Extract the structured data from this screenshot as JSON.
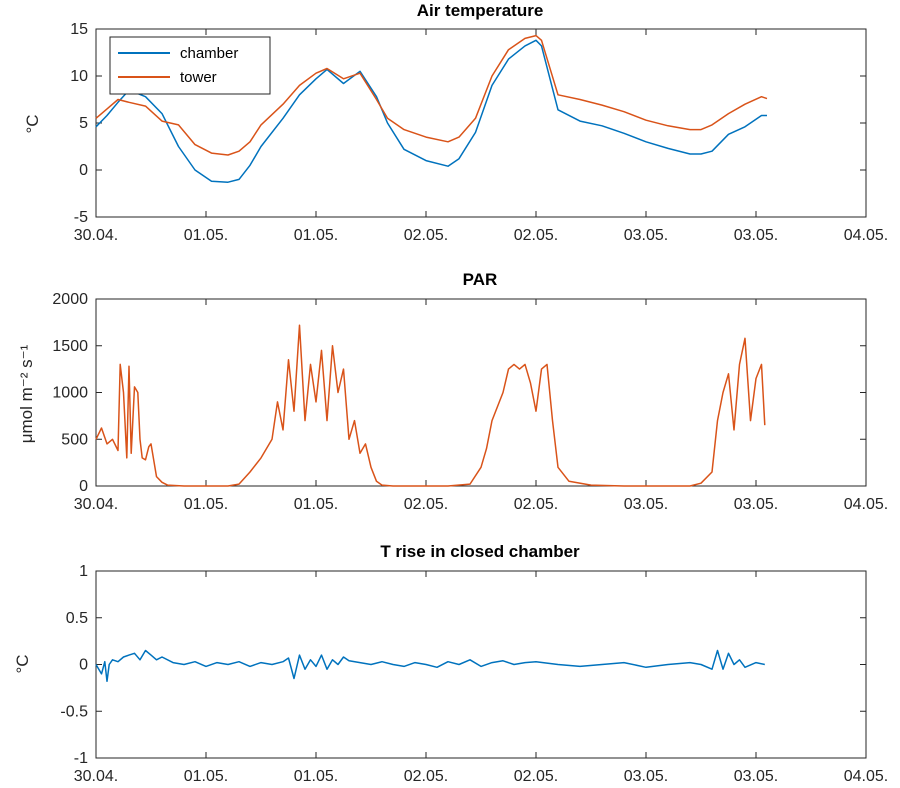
{
  "chart_data": [
    {
      "type": "line",
      "title": "Air temperature",
      "ylabel": "°C",
      "ylim": [
        -5,
        15
      ],
      "yticks": [
        -5,
        0,
        5,
        10,
        15
      ],
      "xlim": [
        0,
        7
      ],
      "xtick_labels": [
        "30.04.",
        "01.05.",
        "01.05.",
        "02.05.",
        "02.05.",
        "03.05.",
        "03.05.",
        "04.05."
      ],
      "legend": {
        "position": "top-left"
      },
      "series": [
        {
          "name": "chamber",
          "color": "#0072BD",
          "x": [
            0,
            0.1,
            0.2,
            0.3,
            0.45,
            0.6,
            0.75,
            0.9,
            1.05,
            1.2,
            1.3,
            1.4,
            1.5,
            1.7,
            1.85,
            2.0,
            2.1,
            2.25,
            2.4,
            2.55,
            2.65,
            2.8,
            3.0,
            3.2,
            3.3,
            3.45,
            3.6,
            3.75,
            3.9,
            4.0,
            4.05,
            4.2,
            4.4,
            4.6,
            4.8,
            5.0,
            5.2,
            5.4,
            5.5,
            5.6,
            5.75,
            5.9,
            6.05,
            6.1
          ],
          "y": [
            4.6,
            5.8,
            7.2,
            8.5,
            7.8,
            6.0,
            2.5,
            0.0,
            -1.2,
            -1.3,
            -1.0,
            0.5,
            2.5,
            5.5,
            8.0,
            9.7,
            10.7,
            9.2,
            10.5,
            7.8,
            5.0,
            2.2,
            1.0,
            0.4,
            1.2,
            4.0,
            9.0,
            11.8,
            13.2,
            13.8,
            13.2,
            6.4,
            5.2,
            4.7,
            3.9,
            3.0,
            2.3,
            1.7,
            1.7,
            2.0,
            3.8,
            4.6,
            5.8,
            5.8
          ]
        },
        {
          "name": "tower",
          "color": "#D95319",
          "x": [
            0,
            0.1,
            0.2,
            0.3,
            0.45,
            0.6,
            0.75,
            0.9,
            1.05,
            1.2,
            1.3,
            1.4,
            1.5,
            1.7,
            1.85,
            2.0,
            2.1,
            2.25,
            2.4,
            2.55,
            2.65,
            2.8,
            3.0,
            3.2,
            3.3,
            3.45,
            3.6,
            3.75,
            3.9,
            4.0,
            4.05,
            4.2,
            4.4,
            4.6,
            4.8,
            5.0,
            5.2,
            5.4,
            5.5,
            5.6,
            5.75,
            5.9,
            6.05,
            6.1
          ],
          "y": [
            5.5,
            6.5,
            7.5,
            7.2,
            6.8,
            5.2,
            4.8,
            2.7,
            1.8,
            1.6,
            2.0,
            3.0,
            4.8,
            7.0,
            9.0,
            10.3,
            10.8,
            9.7,
            10.3,
            7.5,
            5.5,
            4.3,
            3.5,
            3.0,
            3.5,
            5.5,
            10.0,
            12.8,
            14.0,
            14.3,
            13.8,
            8.0,
            7.5,
            6.9,
            6.2,
            5.3,
            4.7,
            4.3,
            4.3,
            4.8,
            6.0,
            7.0,
            7.8,
            7.6
          ]
        }
      ]
    },
    {
      "type": "line",
      "title": "PAR",
      "ylabel": "μmol m⁻² s⁻¹",
      "ylim": [
        0,
        2000
      ],
      "yticks": [
        0,
        500,
        1000,
        1500,
        2000
      ],
      "xlim": [
        0,
        7
      ],
      "xtick_labels": [
        "30.04.",
        "01.05.",
        "01.05.",
        "02.05.",
        "02.05.",
        "03.05.",
        "03.05.",
        "04.05."
      ],
      "series": [
        {
          "name": "PAR",
          "color": "#D95319",
          "x": [
            0,
            0.05,
            0.1,
            0.15,
            0.2,
            0.22,
            0.25,
            0.28,
            0.3,
            0.32,
            0.35,
            0.38,
            0.4,
            0.42,
            0.45,
            0.48,
            0.5,
            0.55,
            0.6,
            0.65,
            0.8,
            1.0,
            1.2,
            1.3,
            1.4,
            1.5,
            1.6,
            1.65,
            1.7,
            1.75,
            1.8,
            1.85,
            1.9,
            1.95,
            2.0,
            2.05,
            2.1,
            2.15,
            2.2,
            2.25,
            2.3,
            2.35,
            2.4,
            2.45,
            2.5,
            2.55,
            2.6,
            2.7,
            2.8,
            3.0,
            3.2,
            3.4,
            3.5,
            3.55,
            3.6,
            3.7,
            3.75,
            3.8,
            3.85,
            3.9,
            3.95,
            4.0,
            4.05,
            4.1,
            4.15,
            4.2,
            4.3,
            4.5,
            4.8,
            5.0,
            5.2,
            5.4,
            5.5,
            5.6,
            5.65,
            5.7,
            5.75,
            5.8,
            5.85,
            5.9,
            5.95,
            6.0,
            6.05,
            6.08
          ],
          "y": [
            500,
            620,
            450,
            500,
            380,
            1300,
            1000,
            300,
            1280,
            350,
            1060,
            1000,
            500,
            300,
            280,
            420,
            450,
            100,
            40,
            10,
            0,
            0,
            0,
            20,
            150,
            300,
            500,
            900,
            600,
            1350,
            800,
            1720,
            700,
            1300,
            900,
            1450,
            700,
            1500,
            1000,
            1250,
            500,
            700,
            350,
            450,
            200,
            50,
            10,
            0,
            0,
            0,
            0,
            20,
            200,
            400,
            700,
            1000,
            1250,
            1300,
            1250,
            1300,
            1100,
            800,
            1250,
            1300,
            700,
            200,
            50,
            10,
            0,
            0,
            0,
            0,
            30,
            150,
            700,
            1000,
            1200,
            600,
            1300,
            1580,
            700,
            1150,
            1300,
            650
          ]
        }
      ]
    },
    {
      "type": "line",
      "title": "T rise in closed chamber",
      "ylabel": "°C",
      "ylim": [
        -1,
        1
      ],
      "yticks": [
        -1,
        -0.5,
        0,
        0.5,
        1
      ],
      "xlim": [
        0,
        7
      ],
      "xtick_labels": [
        "30.04.",
        "01.05.",
        "01.05.",
        "02.05.",
        "02.05.",
        "03.05.",
        "03.05.",
        "04.05."
      ],
      "series": [
        {
          "name": "T rise",
          "color": "#0072BD",
          "x": [
            0,
            0.05,
            0.08,
            0.1,
            0.12,
            0.15,
            0.2,
            0.25,
            0.3,
            0.35,
            0.4,
            0.45,
            0.5,
            0.55,
            0.6,
            0.7,
            0.8,
            0.9,
            1.0,
            1.1,
            1.2,
            1.3,
            1.4,
            1.5,
            1.6,
            1.7,
            1.75,
            1.8,
            1.85,
            1.9,
            1.95,
            2.0,
            2.05,
            2.1,
            2.15,
            2.2,
            2.25,
            2.3,
            2.4,
            2.5,
            2.6,
            2.7,
            2.8,
            2.9,
            3.0,
            3.1,
            3.2,
            3.3,
            3.4,
            3.5,
            3.6,
            3.7,
            3.8,
            3.9,
            4.0,
            4.2,
            4.4,
            4.6,
            4.8,
            5.0,
            5.2,
            5.4,
            5.5,
            5.6,
            5.65,
            5.7,
            5.75,
            5.8,
            5.85,
            5.9,
            6.0,
            6.08
          ],
          "y": [
            0.0,
            -0.1,
            0.03,
            -0.18,
            0.0,
            0.05,
            0.03,
            0.08,
            0.1,
            0.12,
            0.05,
            0.15,
            0.1,
            0.05,
            0.08,
            0.02,
            0.0,
            0.03,
            -0.02,
            0.02,
            0.0,
            0.03,
            -0.02,
            0.02,
            0.0,
            0.03,
            0.07,
            -0.15,
            0.1,
            -0.05,
            0.05,
            -0.02,
            0.1,
            -0.05,
            0.05,
            0.0,
            0.08,
            0.04,
            0.02,
            0.0,
            0.03,
            0.0,
            -0.02,
            0.02,
            0.0,
            -0.03,
            0.03,
            0.0,
            0.05,
            -0.02,
            0.02,
            0.04,
            0.0,
            0.02,
            0.03,
            0.0,
            -0.02,
            0.0,
            0.02,
            -0.03,
            0.0,
            0.02,
            0.0,
            -0.05,
            0.15,
            -0.05,
            0.12,
            0.0,
            0.05,
            -0.03,
            0.02,
            0.0
          ]
        }
      ]
    }
  ]
}
